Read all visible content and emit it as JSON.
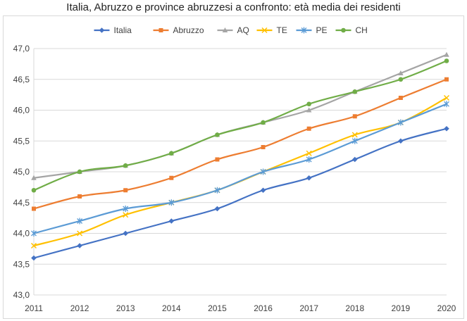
{
  "chart_data": {
    "type": "line",
    "title": "Italia, Abruzzo e province abruzzesi a confronto: età media dei residenti",
    "xlabel": "",
    "ylabel": "",
    "x": [
      "2011",
      "2012",
      "2013",
      "2014",
      "2015",
      "2016",
      "2017",
      "2018",
      "2019",
      "2020"
    ],
    "ylim": [
      43.0,
      47.0
    ],
    "y_ticks": [
      "43,0",
      "43,5",
      "44,0",
      "44,5",
      "45,0",
      "45,5",
      "46,0",
      "46,5",
      "47,0"
    ],
    "grid": "horizontal",
    "legend_position": "top",
    "series": [
      {
        "name": "Italia",
        "color": "#4472C4",
        "marker": "diamond",
        "values": [
          43.6,
          43.8,
          44.0,
          44.2,
          44.4,
          44.7,
          44.9,
          45.2,
          45.5,
          45.7
        ]
      },
      {
        "name": "Abruzzo",
        "color": "#ED7D31",
        "marker": "square",
        "values": [
          44.4,
          44.6,
          44.7,
          44.9,
          45.2,
          45.4,
          45.7,
          45.9,
          46.2,
          46.5
        ]
      },
      {
        "name": "AQ",
        "color": "#A5A5A5",
        "marker": "triangle",
        "values": [
          44.9,
          45.0,
          45.1,
          45.3,
          45.6,
          45.8,
          46.0,
          46.3,
          46.6,
          46.9
        ]
      },
      {
        "name": "TE",
        "color": "#FFC000",
        "marker": "x",
        "values": [
          43.8,
          44.0,
          44.3,
          44.5,
          44.7,
          45.0,
          45.3,
          45.6,
          45.8,
          46.2
        ]
      },
      {
        "name": "PE",
        "color": "#5B9BD5",
        "marker": "star",
        "values": [
          44.0,
          44.2,
          44.4,
          44.5,
          44.7,
          45.0,
          45.2,
          45.5,
          45.8,
          46.1
        ]
      },
      {
        "name": "CH",
        "color": "#70AD47",
        "marker": "circle",
        "values": [
          44.7,
          45.0,
          45.1,
          45.3,
          45.6,
          45.8,
          46.1,
          46.3,
          46.5,
          46.8
        ]
      }
    ]
  }
}
